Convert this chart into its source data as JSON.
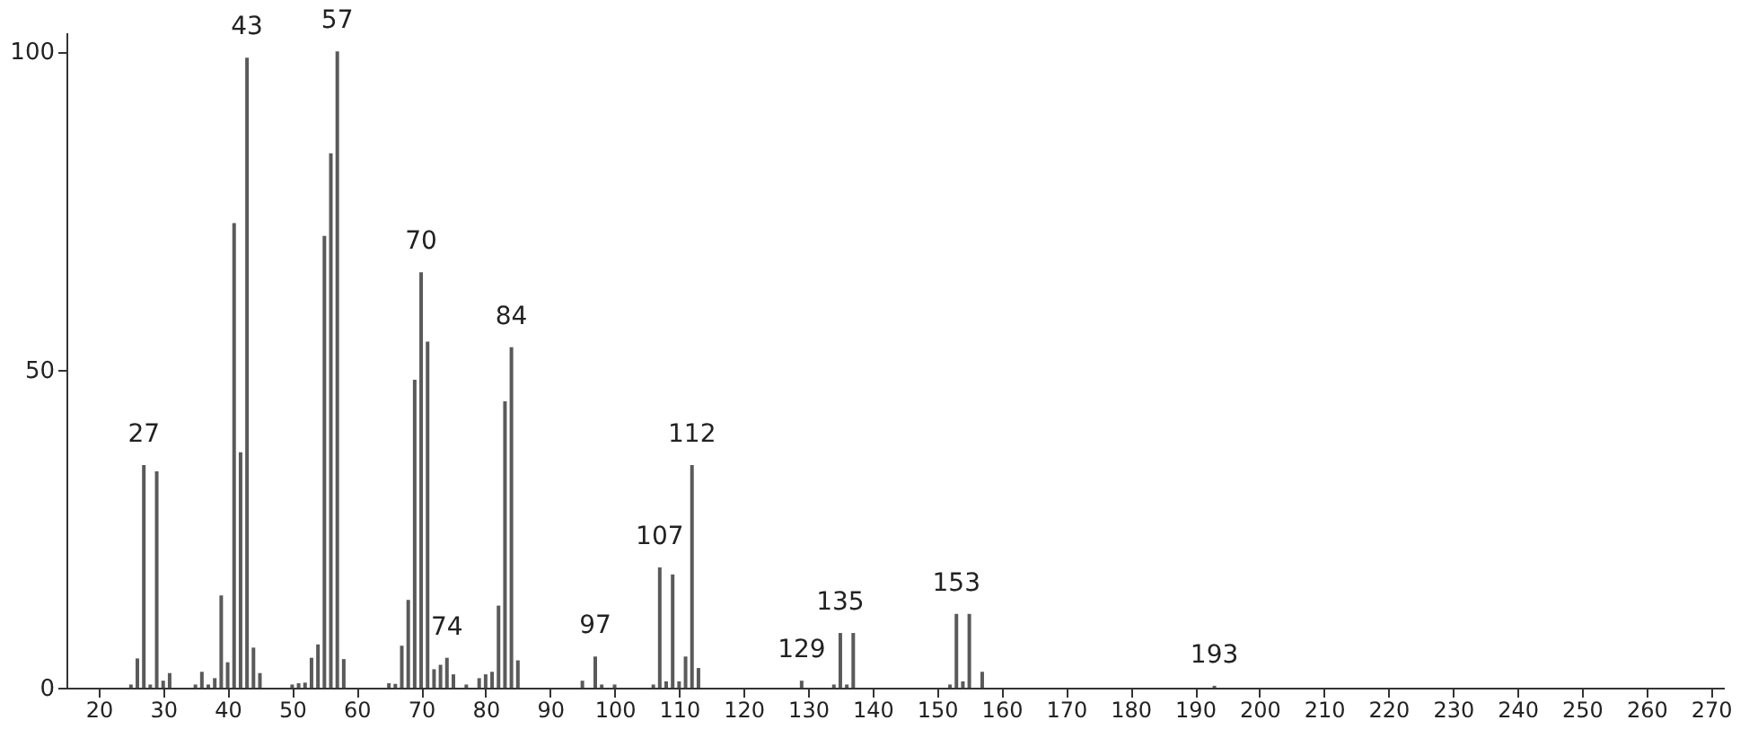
{
  "chart_data": {
    "type": "bar",
    "x": [
      25,
      26,
      27,
      28,
      29,
      30,
      31,
      35,
      36,
      37,
      38,
      39,
      40,
      41,
      42,
      43,
      44,
      45,
      50,
      51,
      52,
      53,
      54,
      55,
      56,
      57,
      58,
      65,
      66,
      67,
      68,
      69,
      70,
      71,
      72,
      73,
      74,
      75,
      77,
      79,
      80,
      81,
      82,
      83,
      84,
      85,
      95,
      97,
      98,
      100,
      106,
      107,
      108,
      109,
      110,
      111,
      112,
      113,
      129,
      134,
      135,
      136,
      137,
      152,
      153,
      154,
      155,
      157,
      193
    ],
    "values": [
      0.5,
      4.6,
      35,
      0.5,
      34,
      1.1,
      2.3,
      0.5,
      2.5,
      0.5,
      1.5,
      14.5,
      4,
      73,
      37,
      99,
      6.3,
      2.3,
      0.5,
      0.7,
      0.8,
      4.7,
      6.8,
      71,
      84,
      100,
      4.5,
      0.7,
      0.6,
      6.6,
      13.8,
      48.4,
      65.3,
      54.4,
      2.9,
      3.6,
      4.7,
      2.1,
      0.5,
      1.5,
      2.1,
      2.5,
      12.9,
      45,
      53.5,
      4.3,
      1.1,
      4.9,
      0.5,
      0.5,
      0.5,
      18.9,
      1,
      17.8,
      1,
      4.9,
      35,
      3.1,
      1.1,
      0.5,
      8.6,
      0.5,
      8.6,
      0.5,
      11.6,
      1,
      11.6,
      2.5,
      0.3
    ],
    "color": "#5a5a5a",
    "xlim": [
      15,
      272
    ],
    "xticks": [
      20,
      30,
      40,
      50,
      60,
      70,
      80,
      90,
      100,
      110,
      120,
      130,
      140,
      150,
      160,
      170,
      180,
      190,
      200,
      210,
      220,
      230,
      240,
      250,
      260,
      270
    ],
    "ylim": [
      0,
      103
    ],
    "yticks": [
      0,
      50,
      100
    ],
    "grid": false,
    "annotations": [
      {
        "text": "27",
        "x": 27,
        "y": 35
      },
      {
        "text": "43",
        "x": 43,
        "y": 99
      },
      {
        "text": "57",
        "x": 57,
        "y": 100
      },
      {
        "text": "70",
        "x": 70,
        "y": 65.3
      },
      {
        "text": "74",
        "x": 74,
        "y": 4.7
      },
      {
        "text": "84",
        "x": 84,
        "y": 53.5
      },
      {
        "text": "97",
        "x": 97,
        "y": 4.9
      },
      {
        "text": "107",
        "x": 107,
        "y": 18.9
      },
      {
        "text": "112",
        "x": 112,
        "y": 35
      },
      {
        "text": "129",
        "x": 129,
        "y": 1.1
      },
      {
        "text": "135",
        "x": 135,
        "y": 8.6
      },
      {
        "text": "153",
        "x": 153,
        "y": 11.6
      },
      {
        "text": "193",
        "x": 193,
        "y": 0.3
      }
    ]
  }
}
